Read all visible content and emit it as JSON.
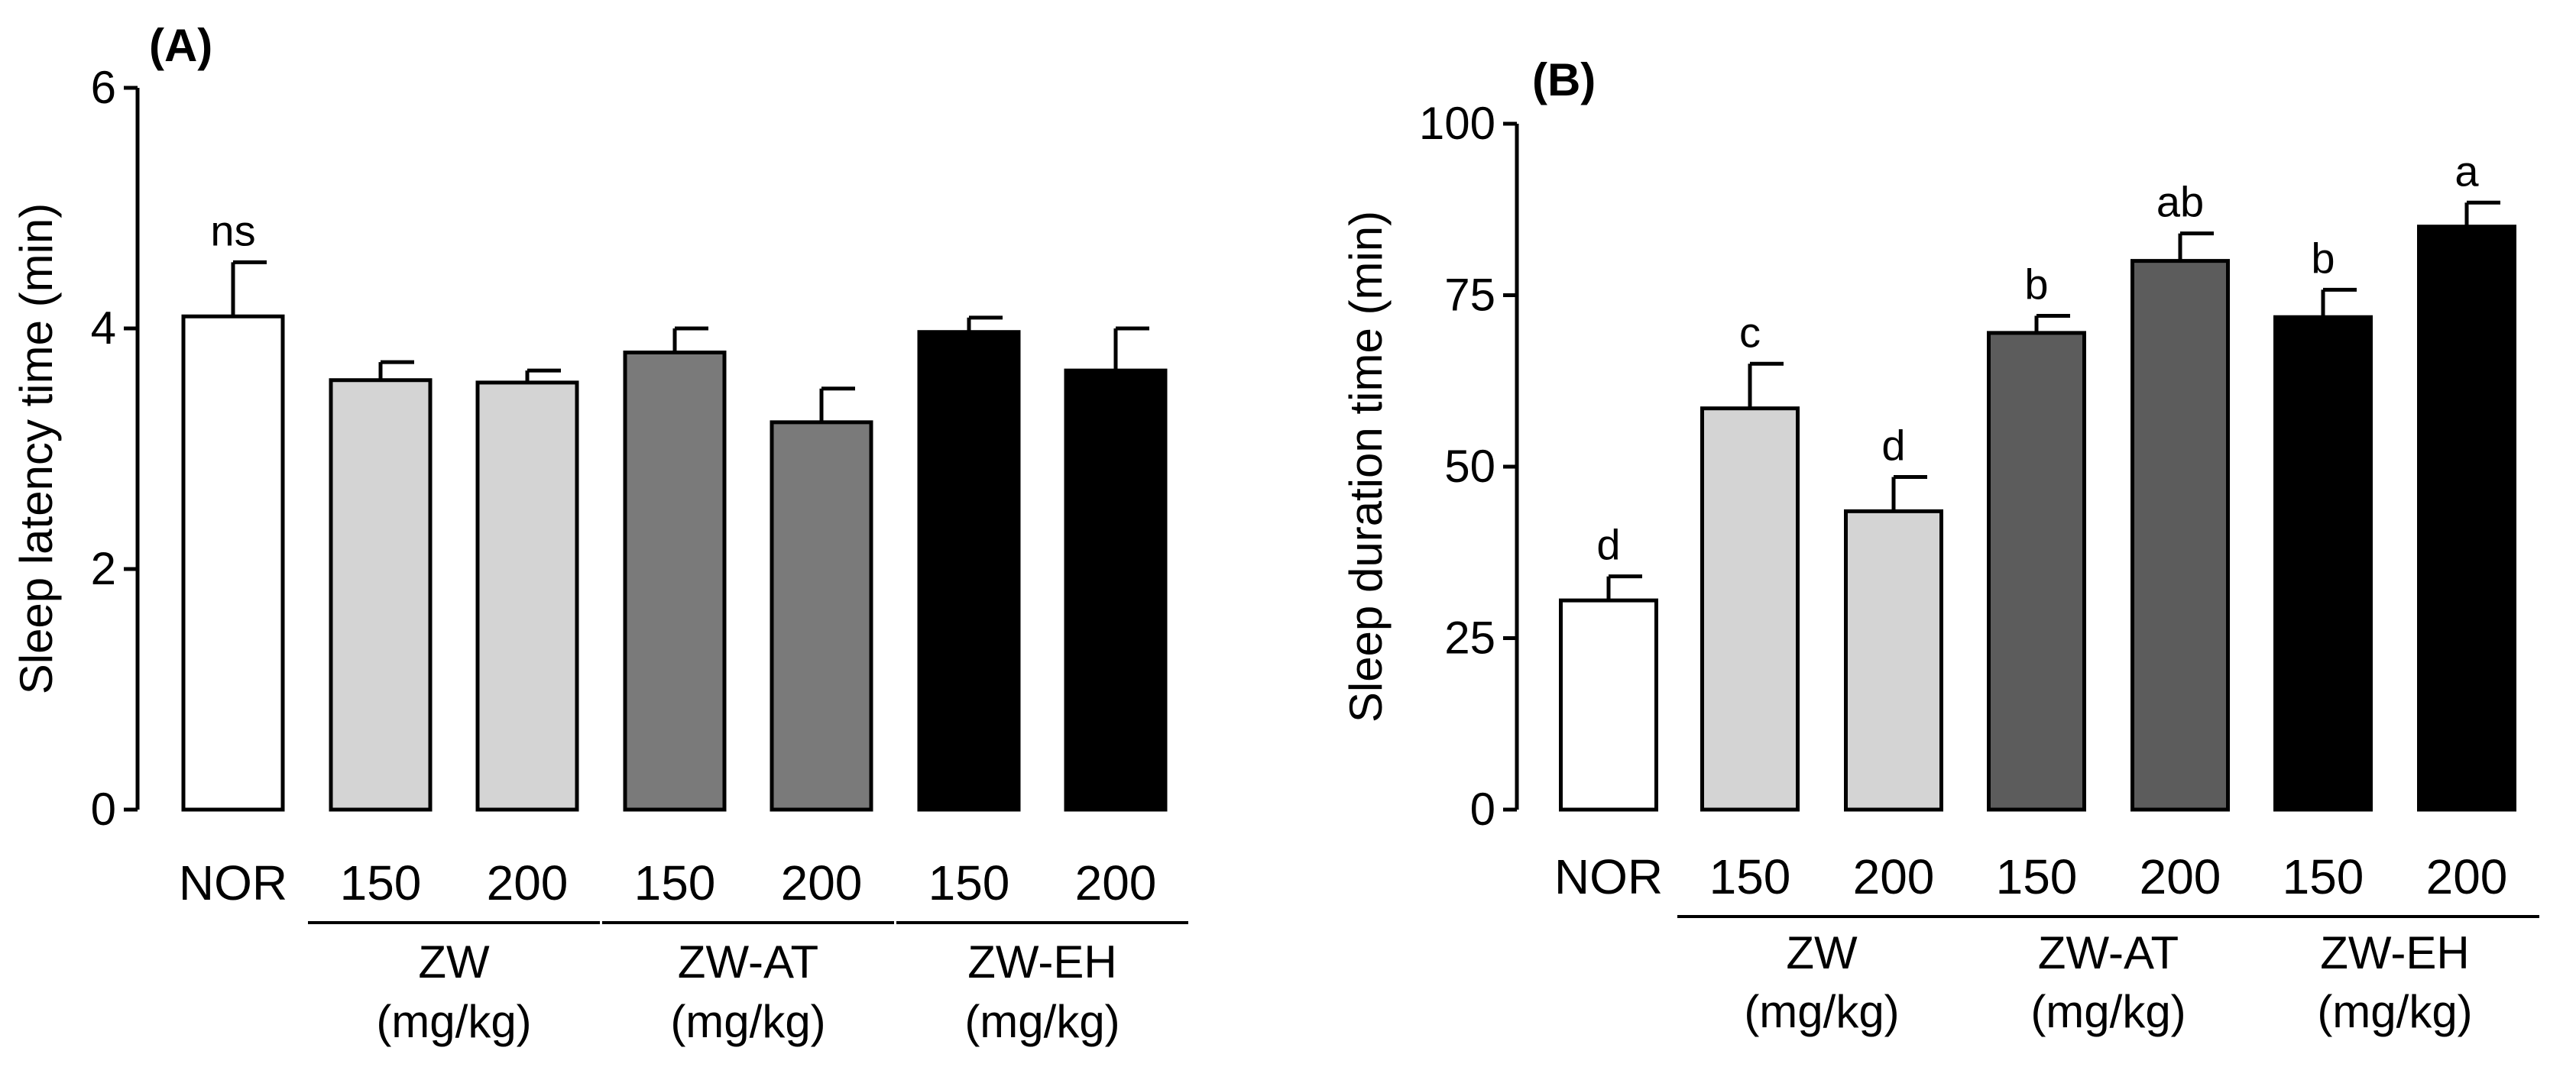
{
  "chart_data": [
    {
      "type": "bar",
      "panel_label": "(A)",
      "ylabel": "Sleep latency time (min)",
      "ylim": [
        0,
        6
      ],
      "yticks": [
        0,
        2,
        4,
        6
      ],
      "categories": [
        "NOR",
        "150",
        "200",
        "150",
        "200",
        "150",
        "200"
      ],
      "values": [
        4.1,
        3.57,
        3.55,
        3.8,
        3.22,
        3.97,
        3.65
      ],
      "errors": [
        0.45,
        0.15,
        0.1,
        0.2,
        0.28,
        0.12,
        0.35
      ],
      "colors": [
        "#ffffff",
        "#d4d4d4",
        "#d4d4d4",
        "#7a7a7a",
        "#7a7a7a",
        "#000000",
        "#000000"
      ],
      "annotations": [
        "ns",
        "",
        "",
        "",
        "",
        "",
        ""
      ],
      "groups": [
        {
          "name": "ZW",
          "unit": "(mg/kg)",
          "bars": [
            1,
            2
          ]
        },
        {
          "name": "ZW-AT",
          "unit": "(mg/kg)",
          "bars": [
            3,
            4
          ]
        },
        {
          "name": "ZW-EH",
          "unit": "(mg/kg)",
          "bars": [
            5,
            6
          ]
        }
      ]
    },
    {
      "type": "bar",
      "panel_label": "(B)",
      "ylabel": "Sleep duration time (min)",
      "ylim": [
        0,
        100
      ],
      "yticks": [
        0,
        25,
        50,
        75,
        100
      ],
      "categories": [
        "NOR",
        "150",
        "200",
        "150",
        "200",
        "150",
        "200"
      ],
      "values": [
        30.5,
        58.5,
        43.5,
        69.5,
        80,
        71.8,
        85
      ],
      "errors": [
        3.5,
        6.5,
        5,
        2.5,
        4,
        4,
        3.5
      ],
      "colors": [
        "#ffffff",
        "#d4d4d4",
        "#d4d4d4",
        "#5c5c5c",
        "#5c5c5c",
        "#000000",
        "#000000"
      ],
      "annotations": [
        "d",
        "c",
        "d",
        "b",
        "ab",
        "b",
        "a"
      ],
      "groups": [
        {
          "name": "ZW",
          "unit": "(mg/kg)",
          "bars": [
            1,
            2
          ]
        },
        {
          "name": "ZW-AT",
          "unit": "(mg/kg)",
          "bars": [
            3,
            4
          ]
        },
        {
          "name": "ZW-EH",
          "unit": "(mg/kg)",
          "bars": [
            5,
            6
          ]
        }
      ]
    }
  ]
}
